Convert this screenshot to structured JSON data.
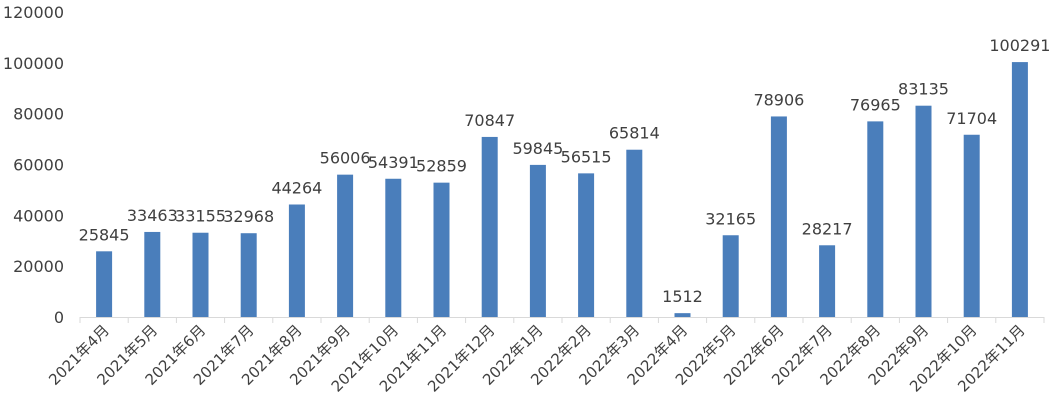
{
  "chart_data": {
    "type": "bar",
    "title": "",
    "xlabel": "",
    "ylabel": "",
    "ylim": [
      0,
      120000
    ],
    "yticks": [
      0,
      20000,
      40000,
      60000,
      80000,
      100000,
      120000
    ],
    "ytick_labels": [
      "0",
      "20000",
      "40000",
      "60000",
      "80000",
      "100000",
      "120000"
    ],
    "grid": false,
    "legend": "none",
    "bar_color": "#4a7ebb",
    "categories": [
      "2021年4月",
      "2021年5月",
      "2021年6月",
      "2021年7月",
      "2021年8月",
      "2021年9月",
      "2021年10月",
      "2021年11月",
      "2021年12月",
      "2022年1月",
      "2022年2月",
      "2022年3月",
      "2022年4月",
      "2022年5月",
      "2022年6月",
      "2022年7月",
      "2022年8月",
      "2022年9月",
      "2022年10月",
      "2022年11月"
    ],
    "values": [
      25845,
      33463,
      33155,
      32968,
      44264,
      56006,
      54391,
      52859,
      70847,
      59845,
      56515,
      65814,
      1512,
      32165,
      78906,
      28217,
      76965,
      83135,
      71704,
      100291
    ],
    "data_labels": [
      "25845",
      "33463",
      "33155",
      "32968",
      "44264",
      "56006",
      "54391",
      "52859",
      "70847",
      "59845",
      "56515",
      "65814",
      "1512",
      "32165",
      "78906",
      "28217",
      "76965",
      "83135",
      "71704",
      "100291"
    ]
  }
}
